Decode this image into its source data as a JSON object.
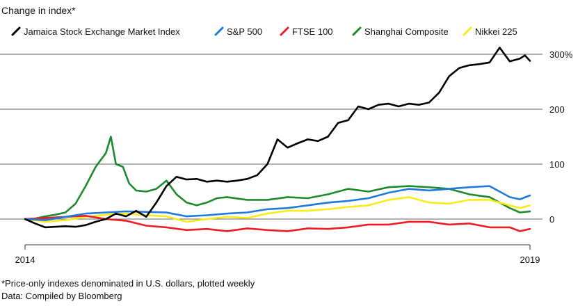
{
  "chart_data": {
    "type": "line",
    "title": "Change in index*",
    "xlabel": "",
    "ylabel": "",
    "x_ticks": [
      "2014",
      "2019"
    ],
    "x_range": [
      2014.0,
      2019.0
    ],
    "ylim": [
      -45,
      320
    ],
    "y_ticks": [
      {
        "value": 300,
        "label": "300%"
      },
      {
        "value": 200,
        "label": "200"
      },
      {
        "value": 100,
        "label": "100"
      },
      {
        "value": 0,
        "label": "0"
      }
    ],
    "grid": true,
    "legend_position": "top-left",
    "series": [
      {
        "name": "Jamaica Stock Exchange Market Index",
        "color": "#000000",
        "x": [
          2014.0,
          2014.1,
          2014.2,
          2014.3,
          2014.4,
          2014.5,
          2014.6,
          2014.7,
          2014.8,
          2014.9,
          2015.0,
          2015.1,
          2015.2,
          2015.3,
          2015.4,
          2015.5,
          2015.6,
          2015.7,
          2015.8,
          2015.9,
          2016.0,
          2016.1,
          2016.2,
          2016.3,
          2016.4,
          2016.5,
          2016.6,
          2016.7,
          2016.8,
          2016.9,
          2017.0,
          2017.1,
          2017.2,
          2017.3,
          2017.4,
          2017.5,
          2017.6,
          2017.7,
          2017.8,
          2017.9,
          2018.0,
          2018.1,
          2018.2,
          2018.3,
          2018.4,
          2018.5,
          2018.6,
          2018.7,
          2018.8,
          2018.9,
          2018.95,
          2019.0
        ],
        "values": [
          0,
          -8,
          -15,
          -14,
          -13,
          -14,
          -11,
          -5,
          0,
          10,
          5,
          15,
          4,
          30,
          60,
          77,
          72,
          73,
          68,
          70,
          68,
          70,
          73,
          80,
          100,
          145,
          130,
          138,
          145,
          142,
          150,
          175,
          180,
          205,
          200,
          208,
          210,
          205,
          210,
          208,
          212,
          230,
          260,
          275,
          280,
          282,
          285,
          312,
          287,
          292,
          298,
          288
        ]
      },
      {
        "name": "S&P 500",
        "color": "#1f7ae0",
        "x": [
          2014.0,
          2014.2,
          2014.4,
          2014.6,
          2014.8,
          2015.0,
          2015.2,
          2015.4,
          2015.6,
          2015.8,
          2016.0,
          2016.2,
          2016.4,
          2016.6,
          2016.8,
          2017.0,
          2017.2,
          2017.4,
          2017.6,
          2017.8,
          2018.0,
          2018.2,
          2018.4,
          2018.6,
          2018.8,
          2018.9,
          2019.0
        ],
        "values": [
          0,
          -2,
          4,
          10,
          12,
          14,
          13,
          12,
          5,
          7,
          10,
          12,
          18,
          20,
          25,
          30,
          33,
          38,
          48,
          55,
          52,
          55,
          58,
          60,
          40,
          36,
          43
        ]
      },
      {
        "name": "FTSE 100",
        "color": "#ee1c25",
        "x": [
          2014.0,
          2014.2,
          2014.4,
          2014.6,
          2014.8,
          2015.0,
          2015.2,
          2015.4,
          2015.6,
          2015.8,
          2016.0,
          2016.2,
          2016.4,
          2016.6,
          2016.8,
          2017.0,
          2017.2,
          2017.4,
          2017.6,
          2017.8,
          2018.0,
          2018.2,
          2018.4,
          2018.6,
          2018.8,
          2018.9,
          2019.0
        ],
        "values": [
          0,
          2,
          4,
          6,
          0,
          -3,
          -12,
          -15,
          -20,
          -18,
          -22,
          -17,
          -20,
          -22,
          -17,
          -18,
          -15,
          -10,
          -10,
          -5,
          -5,
          -10,
          -8,
          -15,
          -15,
          -22,
          -18
        ]
      },
      {
        "name": "Shanghai Composite",
        "color": "#1e8a2d",
        "x": [
          2014.0,
          2014.1,
          2014.2,
          2014.3,
          2014.4,
          2014.5,
          2014.6,
          2014.7,
          2014.8,
          2014.85,
          2014.9,
          2014.97,
          2015.03,
          2015.1,
          2015.2,
          2015.3,
          2015.4,
          2015.5,
          2015.6,
          2015.7,
          2015.8,
          2015.9,
          2016.0,
          2016.2,
          2016.4,
          2016.6,
          2016.8,
          2017.0,
          2017.2,
          2017.4,
          2017.6,
          2017.8,
          2018.0,
          2018.2,
          2018.4,
          2018.6,
          2018.8,
          2018.9,
          2019.0
        ],
        "values": [
          0,
          1,
          5,
          8,
          12,
          28,
          60,
          95,
          120,
          150,
          100,
          95,
          65,
          52,
          50,
          55,
          70,
          45,
          30,
          25,
          30,
          38,
          40,
          35,
          35,
          40,
          38,
          45,
          55,
          50,
          58,
          60,
          58,
          55,
          45,
          40,
          20,
          12,
          14
        ]
      },
      {
        "name": "Nikkei 225",
        "color": "#f8ec18",
        "x": [
          2014.0,
          2014.2,
          2014.4,
          2014.6,
          2014.8,
          2015.0,
          2015.2,
          2015.4,
          2015.6,
          2015.8,
          2016.0,
          2016.2,
          2016.4,
          2016.6,
          2016.8,
          2017.0,
          2017.2,
          2017.4,
          2017.6,
          2017.8,
          2018.0,
          2018.2,
          2018.4,
          2018.6,
          2018.8,
          2018.9,
          2019.0
        ],
        "values": [
          0,
          -5,
          -2,
          4,
          8,
          10,
          7,
          5,
          -5,
          0,
          4,
          2,
          10,
          15,
          15,
          18,
          22,
          25,
          35,
          40,
          30,
          28,
          35,
          35,
          25,
          20,
          25
        ]
      }
    ]
  },
  "footnote": "*Price-only indexes denominated in U.S. dollars, plotted weekly",
  "source": "Data: Compiled by Bloomberg"
}
